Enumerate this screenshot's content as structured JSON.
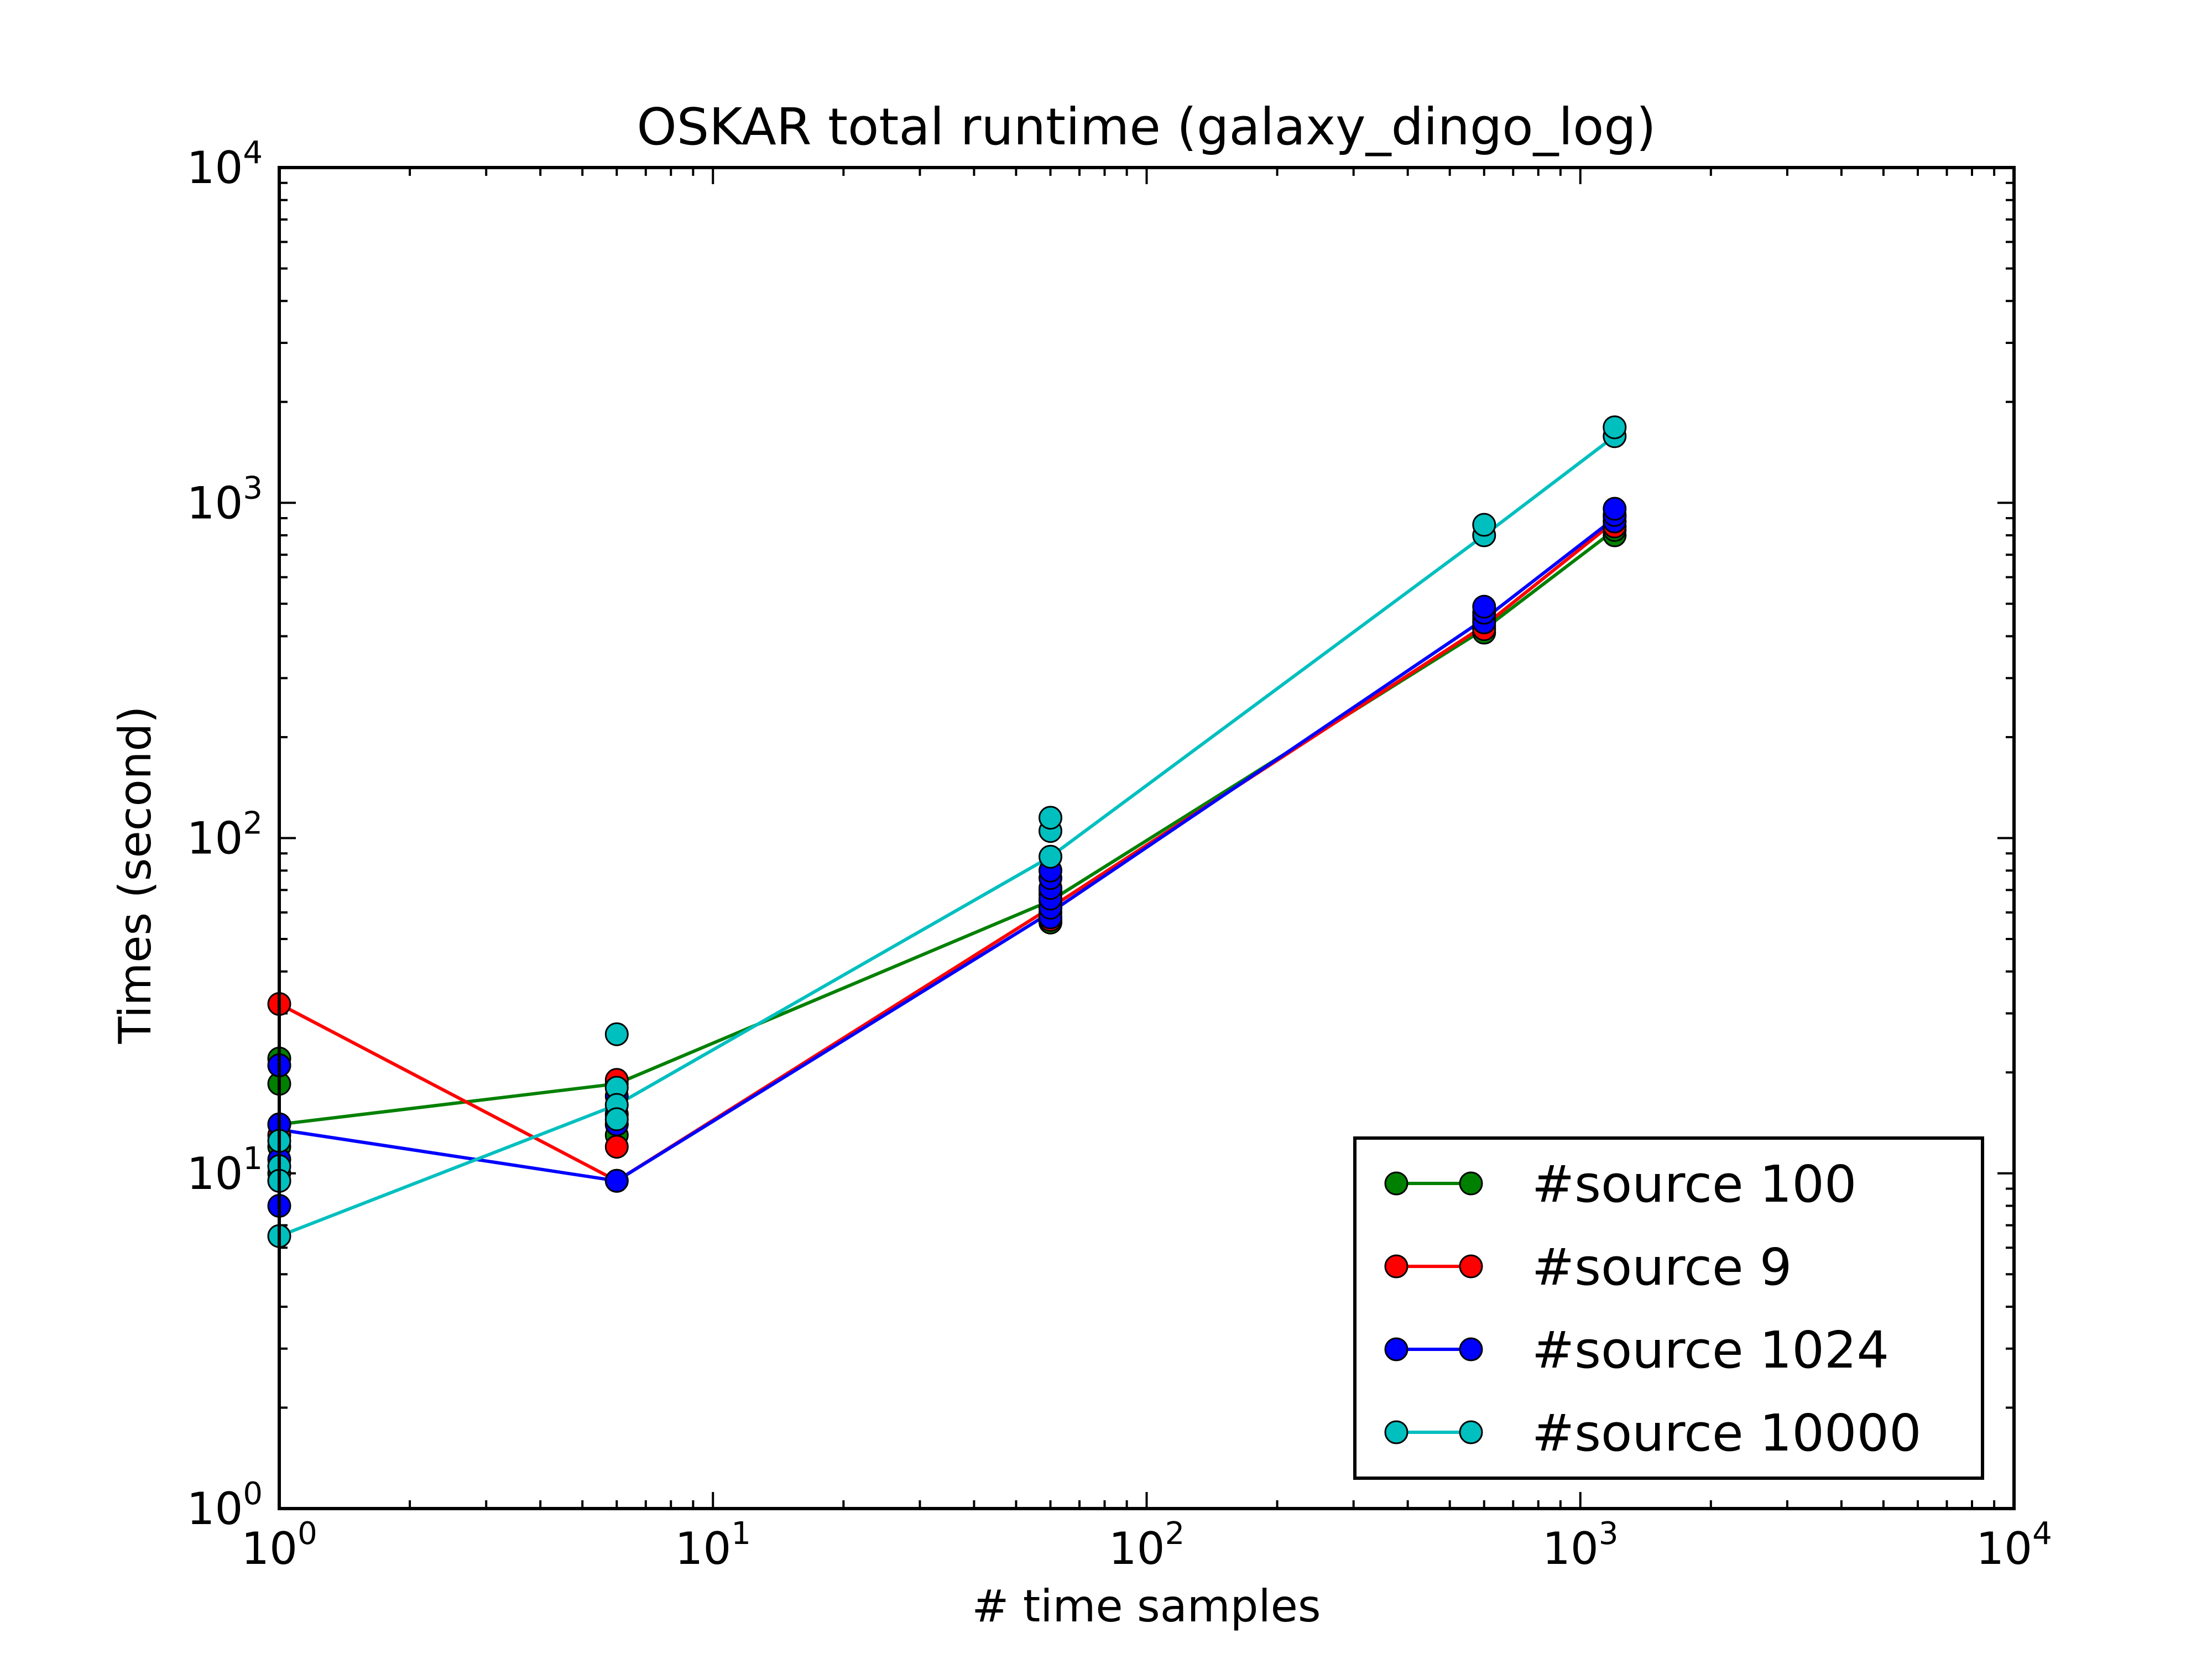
{
  "chart_data": {
    "type": "line",
    "title": "OSKAR total runtime (galaxy_dingo_log)",
    "xlabel": "# time samples",
    "ylabel": "Times (second)",
    "xscale": "log",
    "yscale": "log",
    "xlim": [
      1,
      10000
    ],
    "ylim": [
      1,
      10000
    ],
    "xticks": [
      {
        "value": 1,
        "base": "10",
        "exp": "0"
      },
      {
        "value": 10,
        "base": "10",
        "exp": "1"
      },
      {
        "value": 100,
        "base": "10",
        "exp": "2"
      },
      {
        "value": 1000,
        "base": "10",
        "exp": "3"
      },
      {
        "value": 10000,
        "base": "10",
        "exp": "4"
      }
    ],
    "yticks": [
      {
        "value": 1,
        "base": "10",
        "exp": "0"
      },
      {
        "value": 10,
        "base": "10",
        "exp": "1"
      },
      {
        "value": 100,
        "base": "10",
        "exp": "2"
      },
      {
        "value": 1000,
        "base": "10",
        "exp": "3"
      },
      {
        "value": 10000,
        "base": "10",
        "exp": "4"
      }
    ],
    "grid": false,
    "legend_position": "lower right",
    "series": [
      {
        "name": "#source 100",
        "color": "#008000",
        "line": [
          [
            1,
            14
          ],
          [
            6,
            18.5
          ],
          [
            60,
            65
          ],
          [
            600,
            420
          ],
          [
            1200,
            830
          ]
        ],
        "markers": [
          [
            1,
            22
          ],
          [
            1,
            18.5
          ],
          [
            1,
            14
          ],
          [
            1,
            12
          ],
          [
            1,
            10
          ],
          [
            6,
            18.5
          ],
          [
            6,
            14
          ],
          [
            6,
            13
          ],
          [
            60,
            56
          ],
          [
            60,
            60
          ],
          [
            60,
            65
          ],
          [
            60,
            70
          ],
          [
            600,
            410
          ],
          [
            600,
            430
          ],
          [
            600,
            450
          ],
          [
            1200,
            800
          ],
          [
            1200,
            830
          ],
          [
            1200,
            850
          ]
        ]
      },
      {
        "name": "#source 9",
        "color": "#ff0000",
        "line": [
          [
            1,
            32
          ],
          [
            6,
            9.5
          ],
          [
            60,
            62
          ],
          [
            600,
            430
          ],
          [
            1200,
            880
          ]
        ],
        "markers": [
          [
            1,
            32
          ],
          [
            1,
            21
          ],
          [
            1,
            13
          ],
          [
            1,
            9.5
          ],
          [
            6,
            19
          ],
          [
            6,
            15
          ],
          [
            6,
            12
          ],
          [
            6,
            9.5
          ],
          [
            60,
            57
          ],
          [
            60,
            62
          ],
          [
            60,
            68
          ],
          [
            600,
            420
          ],
          [
            600,
            440
          ],
          [
            600,
            460
          ],
          [
            1200,
            850
          ],
          [
            1200,
            880
          ],
          [
            1200,
            910
          ]
        ]
      },
      {
        "name": "#source 1024",
        "color": "#0000ff",
        "line": [
          [
            1,
            13.5
          ],
          [
            6,
            9.5
          ],
          [
            60,
            60
          ],
          [
            600,
            450
          ],
          [
            1200,
            900
          ]
        ],
        "markers": [
          [
            1,
            21
          ],
          [
            1,
            14
          ],
          [
            1,
            11
          ],
          [
            1,
            8
          ],
          [
            6,
            17
          ],
          [
            6,
            15
          ],
          [
            6,
            14
          ],
          [
            6,
            9.5
          ],
          [
            60,
            58
          ],
          [
            60,
            62
          ],
          [
            60,
            66
          ],
          [
            60,
            71
          ],
          [
            60,
            76
          ],
          [
            60,
            80
          ],
          [
            600,
            440
          ],
          [
            600,
            470
          ],
          [
            600,
            490
          ],
          [
            1200,
            880
          ],
          [
            1200,
            920
          ],
          [
            1200,
            960
          ]
        ]
      },
      {
        "name": "#source 10000",
        "color": "#00bfbf",
        "line": [
          [
            1,
            6.5
          ],
          [
            6,
            16
          ],
          [
            60,
            88
          ],
          [
            600,
            800
          ],
          [
            1200,
            1580
          ]
        ],
        "markers": [
          [
            1,
            12.5
          ],
          [
            1,
            10.5
          ],
          [
            1,
            9.5
          ],
          [
            1,
            6.5
          ],
          [
            6,
            26
          ],
          [
            6,
            18
          ],
          [
            6,
            16
          ],
          [
            6,
            14.5
          ],
          [
            60,
            88
          ],
          [
            60,
            105
          ],
          [
            60,
            115
          ],
          [
            600,
            800
          ],
          [
            600,
            860
          ],
          [
            1200,
            1580
          ],
          [
            1200,
            1680
          ]
        ]
      }
    ]
  }
}
